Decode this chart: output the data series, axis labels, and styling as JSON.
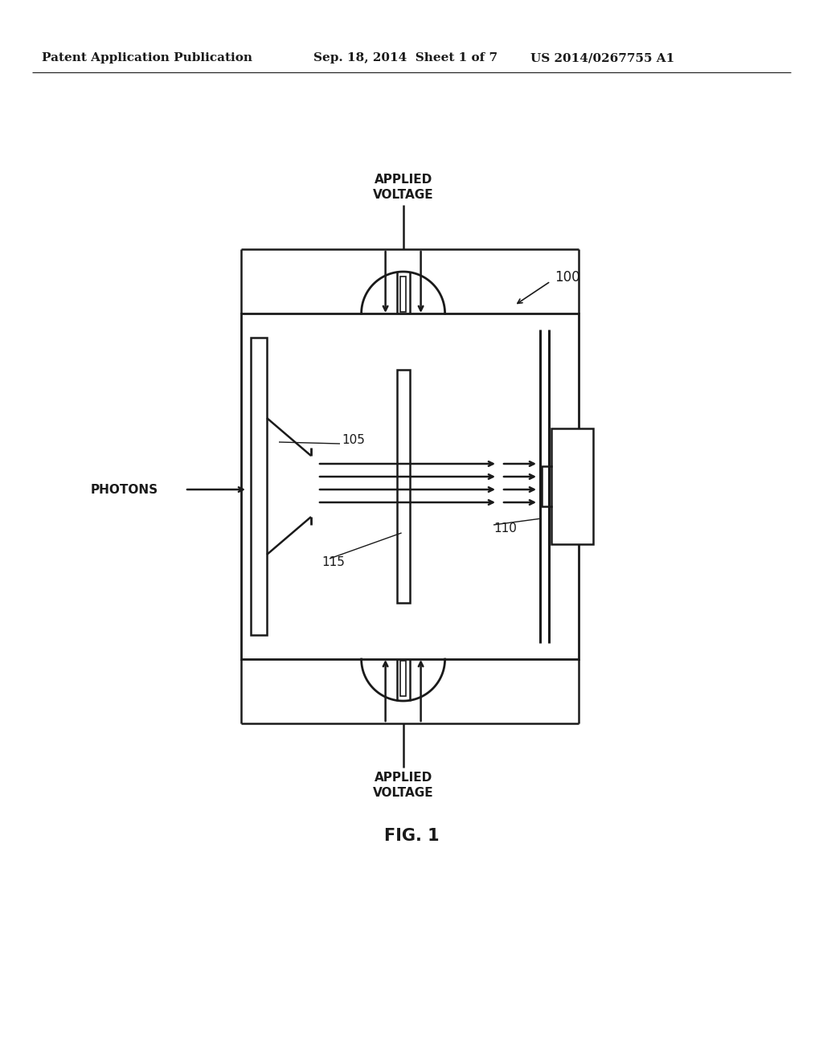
{
  "bg_color": "#ffffff",
  "line_color": "#1a1a1a",
  "header_left": "Patent Application Publication",
  "header_mid": "Sep. 18, 2014  Sheet 1 of 7",
  "header_right": "US 2014/0267755 A1",
  "fig_label": "FIG. 1",
  "ref_100": "100",
  "ref_105": "105",
  "ref_110": "110",
  "ref_115": "115",
  "label_applied_voltage_top": "APPLIED\nVOLTAGE",
  "label_applied_voltage_bot": "APPLIED\nVOLTAGE",
  "label_photons": "PHOTONS"
}
